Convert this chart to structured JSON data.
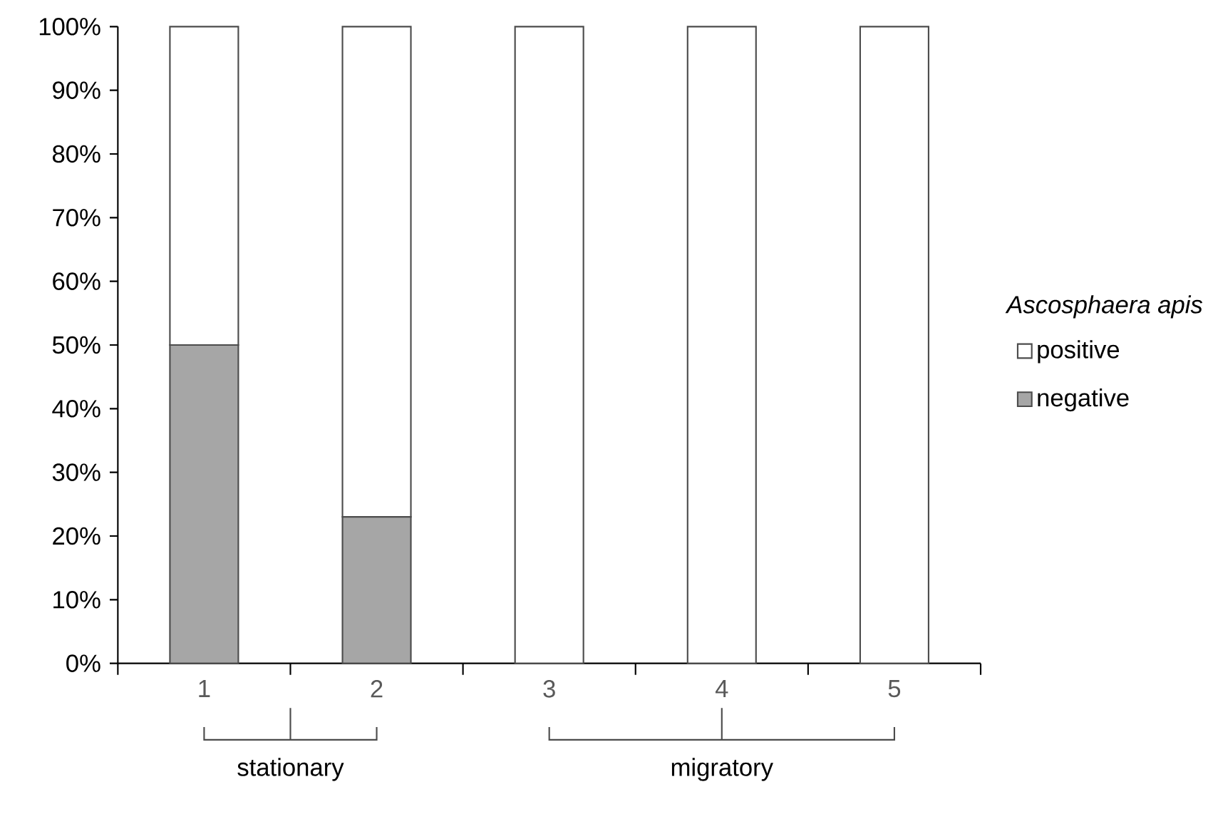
{
  "chart_data": {
    "type": "bar",
    "stacked": true,
    "categories": [
      "1",
      "2",
      "3",
      "4",
      "5"
    ],
    "series": [
      {
        "name": "negative",
        "color": "#a6a6a6",
        "values": [
          50,
          23,
          0,
          0,
          0
        ]
      },
      {
        "name": "positive",
        "color": "#ffffff",
        "values": [
          50,
          77,
          100,
          100,
          100
        ]
      }
    ],
    "ylim": [
      0,
      100
    ],
    "yticks": [
      {
        "value": 0,
        "label": "0%"
      },
      {
        "value": 10,
        "label": "10%"
      },
      {
        "value": 20,
        "label": "20%"
      },
      {
        "value": 30,
        "label": "30%"
      },
      {
        "value": 40,
        "label": "40%"
      },
      {
        "value": 50,
        "label": "50%"
      },
      {
        "value": 60,
        "label": "60%"
      },
      {
        "value": 70,
        "label": "70%"
      },
      {
        "value": 80,
        "label": "80%"
      },
      {
        "value": 90,
        "label": "90%"
      },
      {
        "value": 100,
        "label": "100%"
      }
    ],
    "legend_title": "Ascosphaera apis",
    "legend": "right",
    "grid": false,
    "annotations": [
      "stationary",
      "migratory"
    ]
  }
}
